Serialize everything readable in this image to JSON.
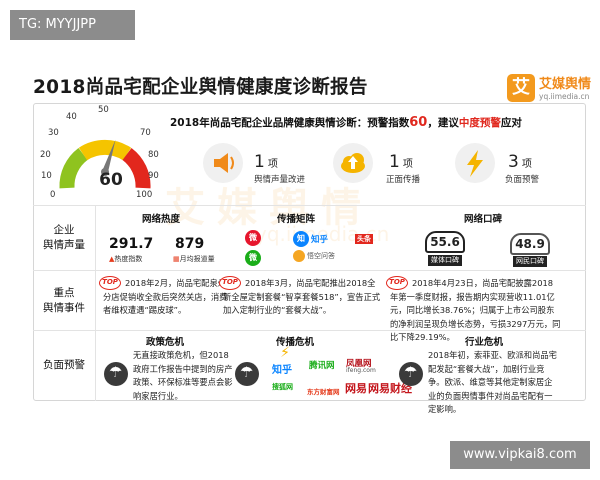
{
  "tag": "TG: MYYJJPP",
  "footer_url": "www.vipkai8.com",
  "title": "2018尚品宅配企业舆情健康度诊断报告",
  "logo": {
    "mark": "艾",
    "name": "艾媒舆情",
    "url": "yq.iimedia.cn"
  },
  "watermark": {
    "mark": "艾媒舆情",
    "url": "yq.iimedia.cn"
  },
  "gauge": {
    "value": "60",
    "labels": [
      "0",
      "10",
      "20",
      "30",
      "40",
      "50",
      "70",
      "80",
      "90",
      "100"
    ],
    "level": 0.6
  },
  "diagnosis": {
    "prefix": "2018年尚品宅配企业品牌健康舆情诊断：预警指数",
    "index": "60",
    "middle": "，建议",
    "level": "中度预警",
    "suffix": "应对"
  },
  "stats": [
    {
      "num": "1",
      "unit": "项",
      "label": "舆情声量改进",
      "icon": "speaker-icon"
    },
    {
      "num": "1",
      "unit": "项",
      "label": "正面传播",
      "icon": "cloud-upload-icon"
    },
    {
      "num": "3",
      "unit": "项",
      "label": "负面预警",
      "icon": "lightning-icon"
    }
  ],
  "volume": {
    "row_label": "企业\n舆情声量",
    "heat_head": "网络热度",
    "heat_value": "291.7",
    "heat_label": "热度指数",
    "reports_value": "879",
    "reports_label": "月均报道量",
    "matrix_head": "传播矩阵",
    "matrix_brands": [
      "知乎",
      "头条",
      "悟空问答"
    ],
    "rep_head": "网络口碑",
    "media_value": "55.6",
    "media_label": "媒体口碑",
    "user_value": "48.9",
    "user_label": "网民口碑"
  },
  "events": {
    "row_label": "重点\n舆情事件",
    "badge": "TOP",
    "items": [
      "2018年2月，尚品宅配泉州分店促销收全款后突然关店，消费者维权遭遇“踢皮球”。",
      "2018年3月，尚品宅配推出2018全新全屋定制套餐“智享套餐518”，宣告正式加入定制行业的“套餐大战”。",
      "2018年4月23日，尚品宅配披露2018 年第一季度财报，报告期内实现营收11.01亿元，同比增长38.76%；归属于上市公司股东的净利润呈现负增长态势，亏损3297万元，同比下降29.19%。"
    ]
  },
  "warning": {
    "row_label": "负面预警",
    "policy_head": "政策危机",
    "policy_text": "无直接政策危机，但2018政府工作报告中提到的房产政策、环保标准等要点会影响家居行业。",
    "spread_head": "传播危机",
    "spread_brands": [
      "知乎",
      "腾讯网",
      "凤凰网",
      "ifeng.com",
      "网易",
      "搜狐网",
      "东方财富网",
      "网易财经"
    ],
    "industry_head": "行业危机",
    "industry_text": "2018年初，索菲亚、欧派和尚品宅配发起“套餐大战”，加剧行业竞争。欧派、维意等其他定制家居企业的负面舆情事件对尚品宅配有一定影响。"
  }
}
